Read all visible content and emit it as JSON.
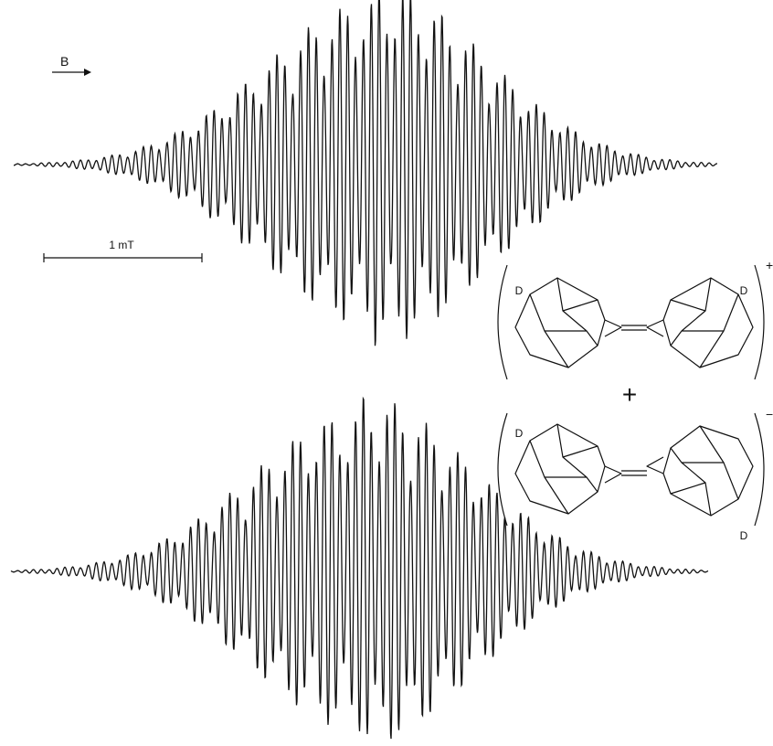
{
  "field_arrow": {
    "label": "B"
  },
  "scale_bar": {
    "label": "1 mT"
  },
  "structures": {
    "top": {
      "left_label": "D",
      "right_label": "D",
      "charge": "+"
    },
    "operator": "+",
    "bottom": {
      "left_label": "D",
      "right_label": "D",
      "charge": "−"
    }
  }
}
